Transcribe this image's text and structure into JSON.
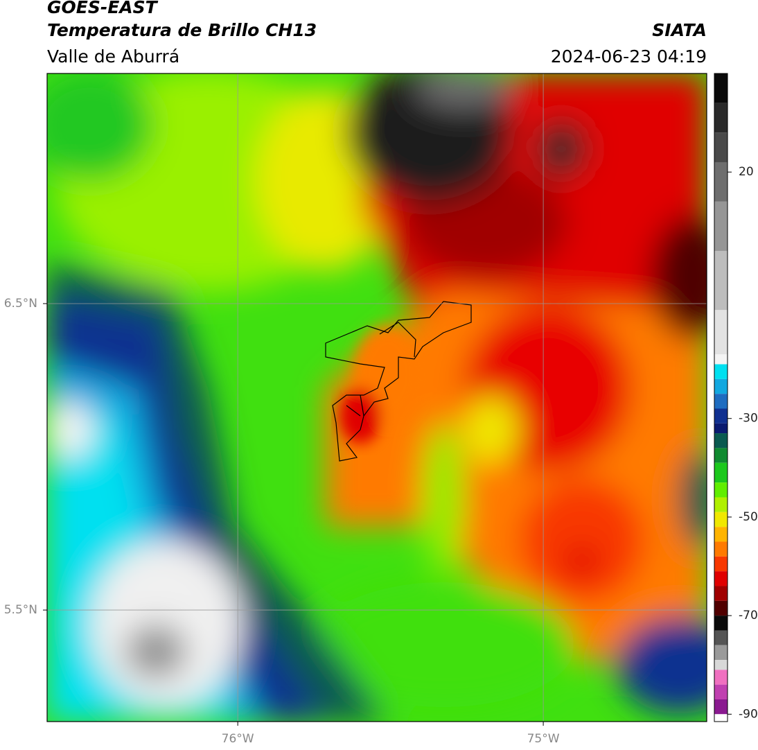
{
  "header": {
    "line1": "GOES-EAST",
    "line2": "Temperatura de Brillo CH13",
    "line3": "Valle de Aburrá",
    "agency": "SIATA",
    "datetime": "2024-06-23 04:19"
  },
  "map": {
    "xlim": [
      -76.624,
      -74.465
    ],
    "ylim": [
      5.136,
      7.251
    ],
    "xticks": [
      {
        "value": -76,
        "label": "76°W"
      },
      {
        "value": -75,
        "label": "75°W"
      }
    ],
    "yticks": [
      {
        "value": 6.5,
        "label": "6.5°N"
      },
      {
        "value": 5.5,
        "label": "5.5°N"
      }
    ],
    "grid": true
  },
  "colorbar": {
    "lim": [
      -91.5,
      40
    ],
    "ticks": [
      20,
      -30,
      -50,
      -70,
      -90
    ],
    "stops": [
      {
        "value": 40,
        "color": "#0a0a0a"
      },
      {
        "value": 34,
        "color": "#2a2a2a"
      },
      {
        "value": 28,
        "color": "#4a4a4a"
      },
      {
        "value": 22,
        "color": "#6e6e6e"
      },
      {
        "value": 14,
        "color": "#969696"
      },
      {
        "value": 4,
        "color": "#bdbdbd"
      },
      {
        "value": -8,
        "color": "#e2e2e2"
      },
      {
        "value": -17,
        "color": "#f4f4f4"
      },
      {
        "value": -19,
        "color": "#00e0f0"
      },
      {
        "value": -22,
        "color": "#12a8e0"
      },
      {
        "value": -25,
        "color": "#1e6cc0"
      },
      {
        "value": -28,
        "color": "#103090"
      },
      {
        "value": -31,
        "color": "#0a1a70"
      },
      {
        "value": -33,
        "color": "#0a5a50"
      },
      {
        "value": -36,
        "color": "#108a30"
      },
      {
        "value": -39,
        "color": "#1cc81c"
      },
      {
        "value": -43,
        "color": "#60ee00"
      },
      {
        "value": -46,
        "color": "#b0f000"
      },
      {
        "value": -49,
        "color": "#f0e800"
      },
      {
        "value": -52,
        "color": "#ffb400"
      },
      {
        "value": -55,
        "color": "#ff7a00"
      },
      {
        "value": -58,
        "color": "#f83800"
      },
      {
        "value": -61,
        "color": "#e00000"
      },
      {
        "value": -64,
        "color": "#a00000"
      },
      {
        "value": -67,
        "color": "#500000"
      },
      {
        "value": -70,
        "color": "#0a0a0a"
      },
      {
        "value": -73,
        "color": "#555555"
      },
      {
        "value": -76,
        "color": "#9a9a9a"
      },
      {
        "value": -79,
        "color": "#d8d8d8"
      },
      {
        "value": -81,
        "color": "#f070c0"
      },
      {
        "value": -84,
        "color": "#c040b0"
      },
      {
        "value": -87,
        "color": "#8a1a90"
      },
      {
        "value": -90,
        "color": "#ffffff"
      }
    ]
  }
}
